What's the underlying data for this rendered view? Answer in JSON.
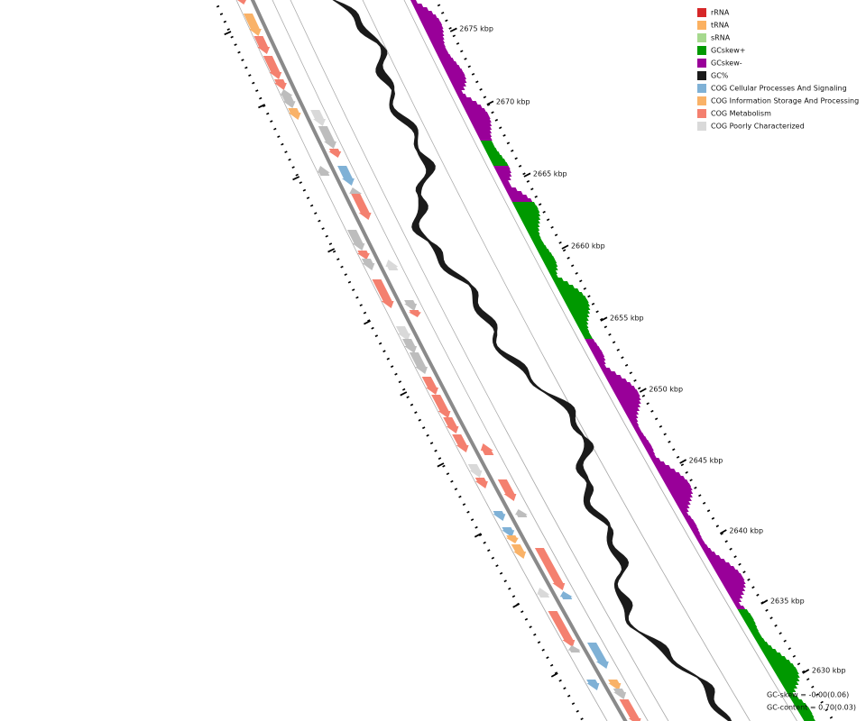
{
  "legend": {
    "items": [
      {
        "label": "rRNA",
        "color": "#d62728"
      },
      {
        "label": "tRNA",
        "color": "#fbb161"
      },
      {
        "label": "sRNA",
        "color": "#a6d98e"
      },
      {
        "label": "GCskew+",
        "color": "#009900"
      },
      {
        "label": "GCskew-",
        "color": "#990099"
      },
      {
        "label": "GC%",
        "color": "#1a1a1a"
      },
      {
        "label": "COG Cellular Processes And Signaling",
        "color": "#7fb1d6"
      },
      {
        "label": "COG Information Storage And Processing",
        "color": "#f9b268"
      },
      {
        "label": "COG Metabolism",
        "color": "#f4806f"
      },
      {
        "label": "COG Poorly Characterized",
        "color": "#d9d9d9"
      }
    ]
  },
  "ruler": {
    "labels": [
      "2675 kbp",
      "2670 kbp",
      "2665 kbp",
      "2660 kbp",
      "2655 kbp",
      "2650 kbp",
      "2645 kbp",
      "2640 kbp",
      "2635 kbp",
      "2630 kbp"
    ]
  },
  "stats": {
    "gc_skew": "GC-skew = -0.00(0.06)",
    "gc_content": "GC-content = 0.70(0.03)"
  }
}
